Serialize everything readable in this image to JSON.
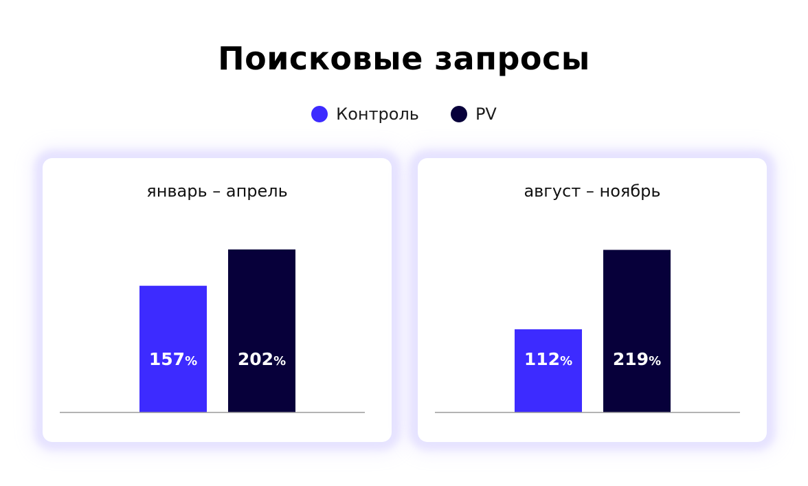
{
  "title": "Поисковые запросы",
  "legend": [
    {
      "label": "Контроль",
      "color": "#3d2bff"
    },
    {
      "label": "PV",
      "color": "#07003a"
    }
  ],
  "chart_data": [
    {
      "type": "bar",
      "title": "январь – апрель",
      "categories": [
        "январь – апрель"
      ],
      "series": [
        {
          "name": "Контроль",
          "values": [
            157
          ],
          "color": "#3d2bff"
        },
        {
          "name": "PV",
          "values": [
            202
          ],
          "color": "#07003a"
        }
      ],
      "value_labels": [
        "157%",
        "202%"
      ],
      "unit": "%",
      "ylim": [
        0,
        230
      ],
      "grid": false,
      "legend_position": "top-center"
    },
    {
      "type": "bar",
      "title": "август – ноябрь",
      "categories": [
        "август – ноябрь"
      ],
      "series": [
        {
          "name": "Контроль",
          "values": [
            112
          ],
          "color": "#3d2bff"
        },
        {
          "name": "PV",
          "values": [
            219
          ],
          "color": "#07003a"
        }
      ],
      "value_labels": [
        "112%",
        "219%"
      ],
      "unit": "%",
      "ylim": [
        0,
        250
      ],
      "grid": false,
      "legend_position": "top-center"
    }
  ]
}
